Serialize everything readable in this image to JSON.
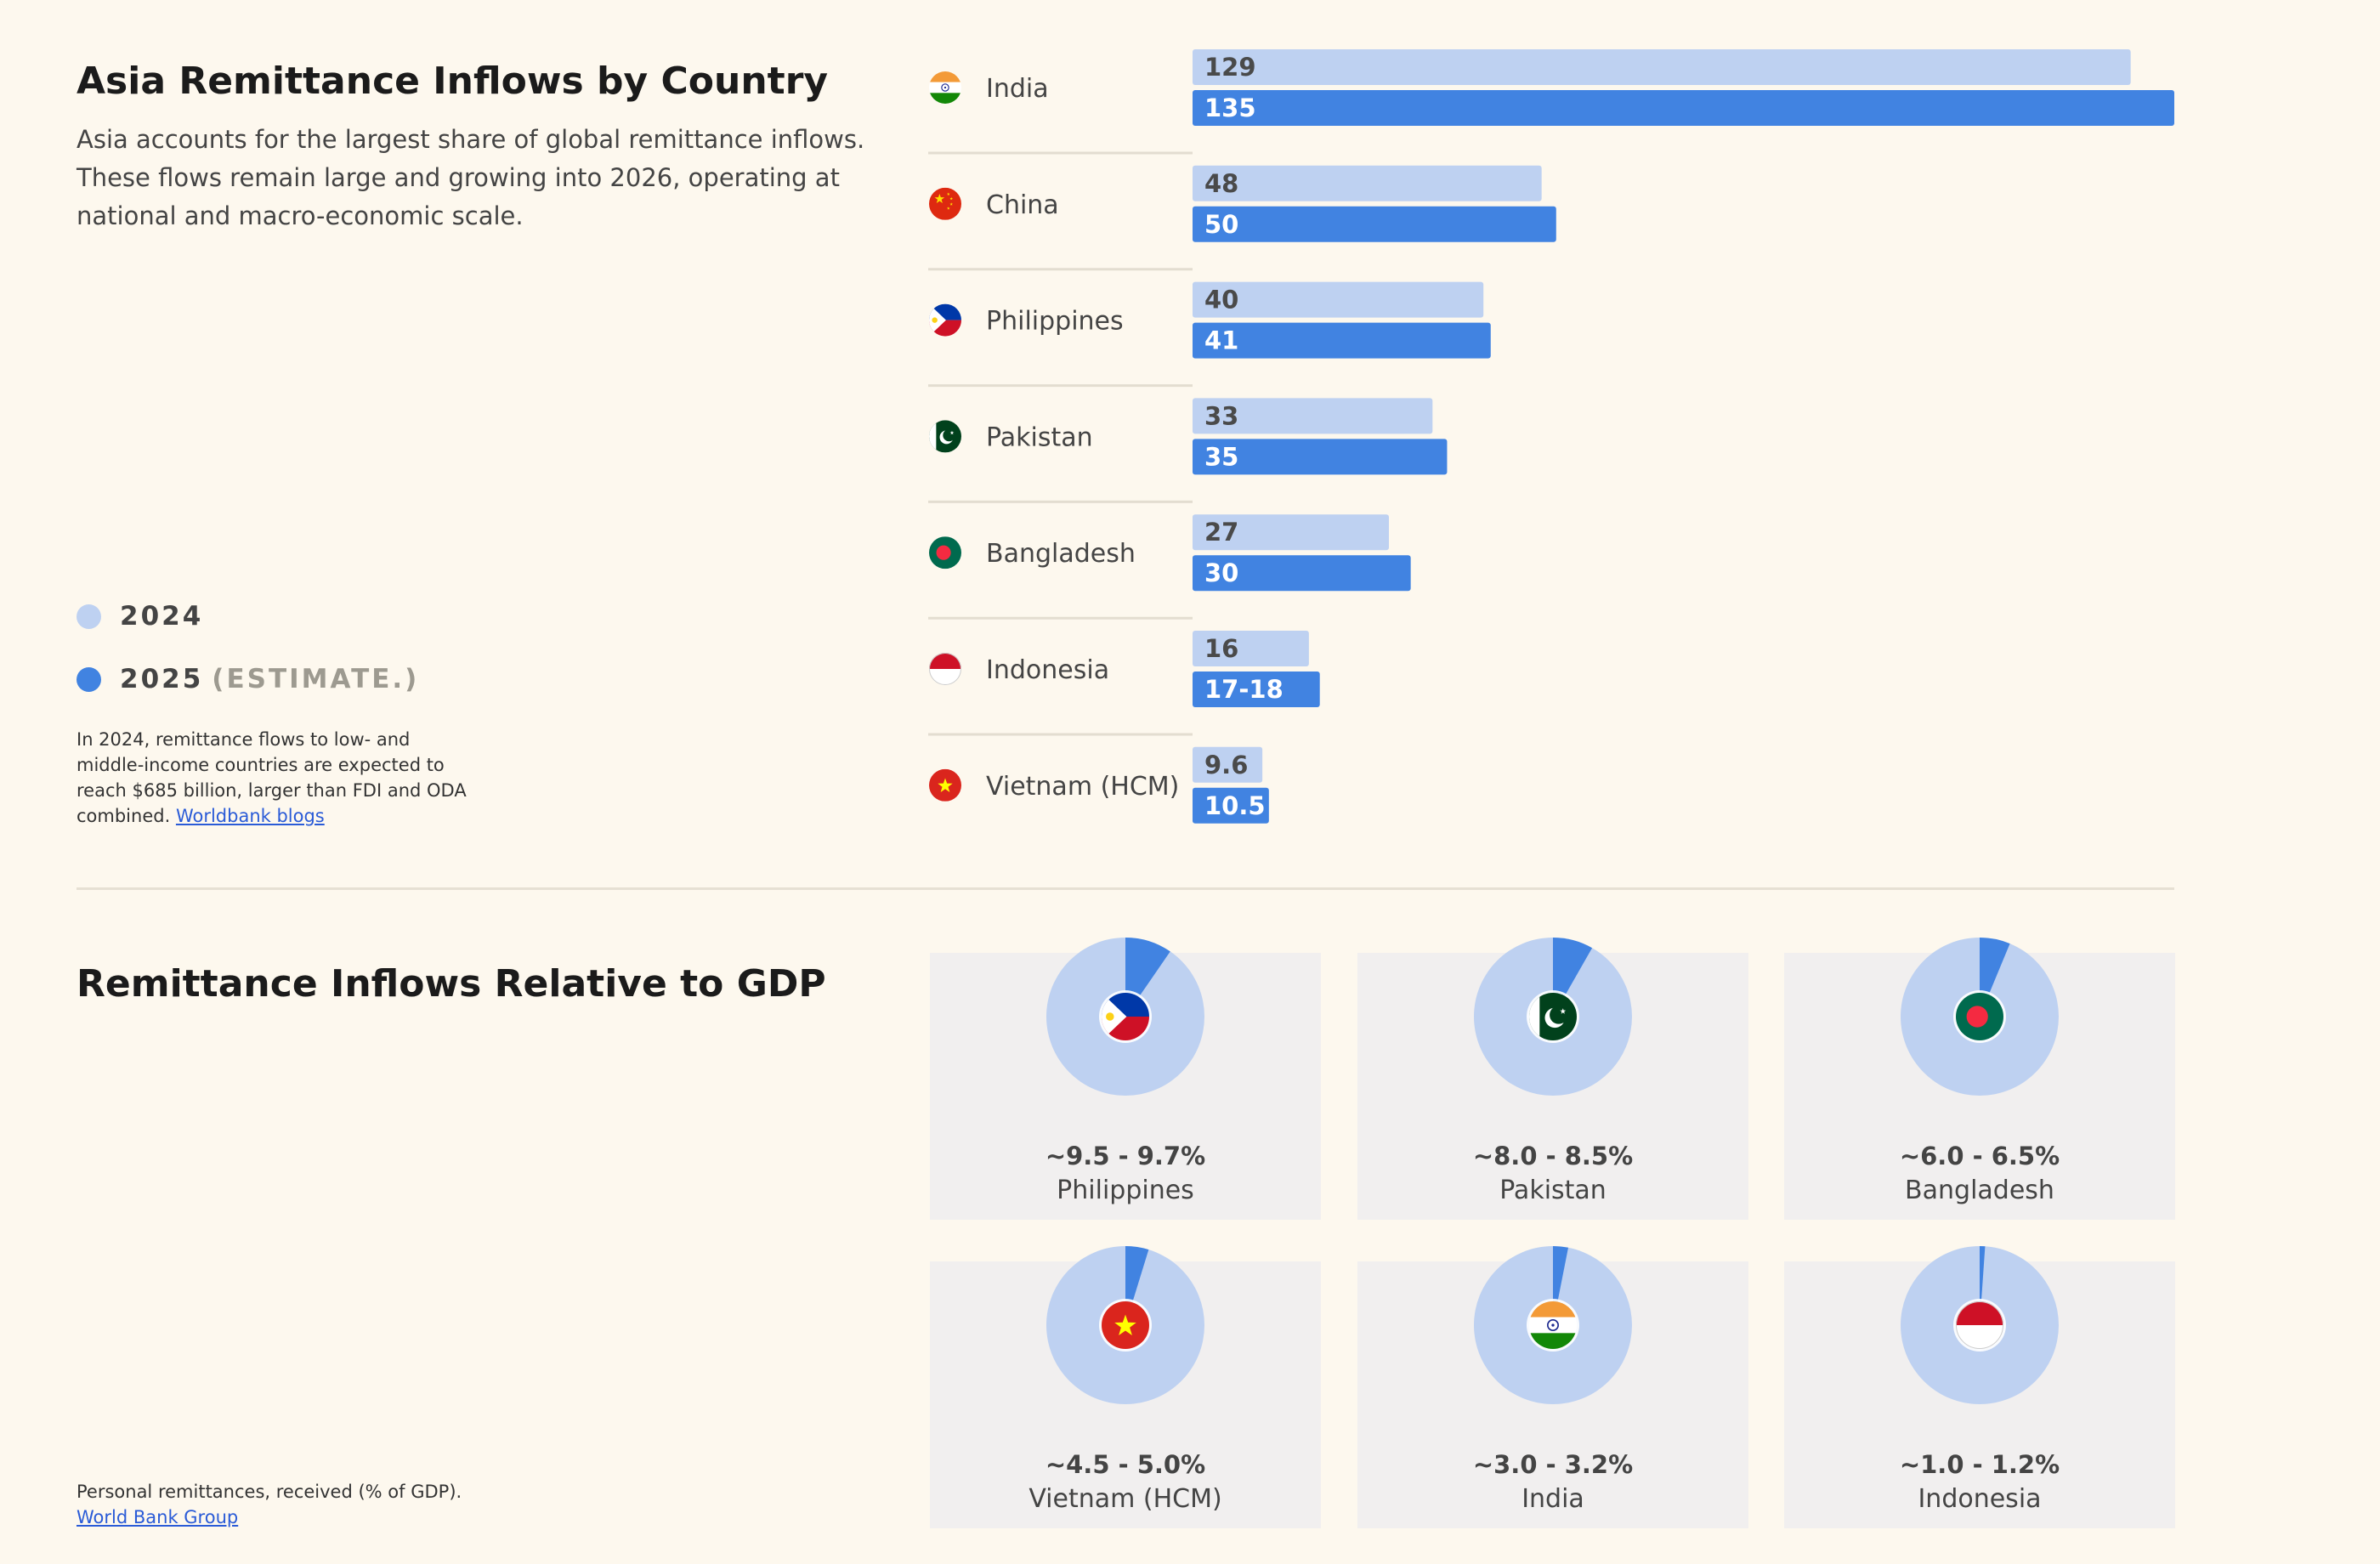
{
  "header": {
    "title": "Asia Remittance Inflows by Country",
    "intro": "Asia accounts for the largest share of global remittance inflows. These flows remain large and growing into 2026, operating at national and macro-economic scale."
  },
  "legend": {
    "year1": "2024",
    "year2": "2025",
    "year2_suffix": "(ESTIMATE.)"
  },
  "note1": {
    "text": "In 2024, remittance flows to low- and middle-income countries are expected to reach $685 billion, larger than FDI and ODA combined.",
    "link": "Worldbank blogs"
  },
  "colors": {
    "series2024": "#bed1f1",
    "series2025": "#4183e1",
    "pie_bg": "#bed1f1",
    "pie_slice": "#4183e1"
  },
  "chart_data": [
    {
      "type": "bar",
      "orientation": "horizontal",
      "title": "Asia Remittance Inflows by Country",
      "categories": [
        "India",
        "China",
        "Philippines",
        "Pakistan",
        "Bangladesh",
        "Indonesia",
        "Vietnam (HCM)"
      ],
      "flags": [
        "india-flag-icon",
        "china-flag-icon",
        "philippines-flag-icon",
        "pakistan-flag-icon",
        "bangladesh-flag-icon",
        "indonesia-flag-icon",
        "vietnam-flag-icon"
      ],
      "series": [
        {
          "name": "2024",
          "values": [
            129,
            48,
            40,
            33,
            27,
            16,
            9.6
          ],
          "labels": [
            "129",
            "48",
            "40",
            "33",
            "27",
            "16",
            "9.6"
          ]
        },
        {
          "name": "2025 (ESTIMATE.)",
          "values": [
            135,
            50,
            41,
            35,
            30,
            17.5,
            10.5
          ],
          "labels": [
            "135",
            "50",
            "41",
            "35",
            "30",
            "17-18",
            "10.5"
          ]
        }
      ],
      "xlim": [
        0,
        135
      ]
    },
    {
      "type": "pie",
      "title": "Remittance Inflows Relative to GDP",
      "items": [
        {
          "country": "Philippines",
          "range": "~9.5 - 9.7%",
          "value": 9.6,
          "flag": "philippines-flag-icon"
        },
        {
          "country": "Pakistan",
          "range": "~8.0 - 8.5%",
          "value": 8.25,
          "flag": "pakistan-flag-icon"
        },
        {
          "country": "Bangladesh",
          "range": "~6.0 - 6.5%",
          "value": 6.25,
          "flag": "bangladesh-flag-icon"
        },
        {
          "country": "Vietnam (HCM)",
          "range": "~4.5 - 5.0%",
          "value": 4.75,
          "flag": "vietnam-flag-icon"
        },
        {
          "country": "India",
          "range": "~3.0 - 3.2%",
          "value": 3.1,
          "flag": "india-flag-icon"
        },
        {
          "country": "Indonesia",
          "range": "~1.0 - 1.2%",
          "value": 1.1,
          "flag": "indonesia-flag-icon"
        }
      ]
    }
  ],
  "section2": {
    "title": "Remittance Inflows Relative to GDP"
  },
  "note2": {
    "text": "Personal remittances, received (% of GDP).",
    "link": "World Bank Group"
  }
}
